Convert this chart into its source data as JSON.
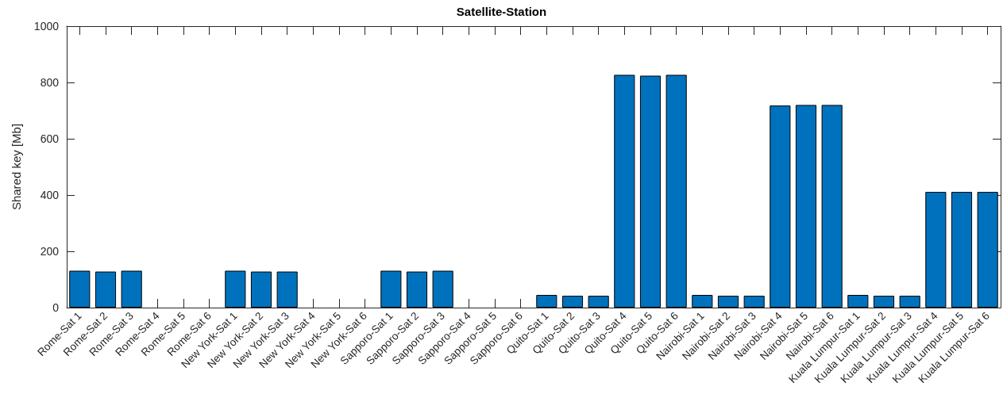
{
  "chart_data": {
    "type": "bar",
    "title": "Satellite-Station",
    "ylabel": "Shared key [Mb]",
    "categories": [
      "Rome-Sat 1",
      "Rome-Sat 2",
      "Rome-Sat 3",
      "Rome-Sat 4",
      "Rome-Sat 5",
      "Rome-Sat 6",
      "New York-Sat 1",
      "New York-Sat 2",
      "New York-Sat 3",
      "New York-Sat 4",
      "New York-Sat 5",
      "New York-Sat 6",
      "Sapporo-Sat 1",
      "Sapporo-Sat 2",
      "Sapporo-Sat 3",
      "Sapporo-Sat 4",
      "Sapporo-Sat 5",
      "Sapporo-Sat 6",
      "Quito-Sat 1",
      "Quito-Sat 2",
      "Quito-Sat 3",
      "Quito-Sat 4",
      "Quito-Sat 5",
      "Quito-Sat 6",
      "Nairobi-Sat 1",
      "Nairobi-Sat 2",
      "Nairobi-Sat 3",
      "Nairobi-Sat 4",
      "Nairobi-Sat 5",
      "Nairobi-Sat 6",
      "Kuala Lumpur-Sat 1",
      "Kuala Lumpur-Sat 2",
      "Kuala Lumpur-Sat 3",
      "Kuala Lumpur-Sat 4",
      "Kuala Lumpur-Sat 5",
      "Kuala Lumpur-Sat 6"
    ],
    "values": [
      131,
      128,
      131,
      0,
      0,
      0,
      131,
      128,
      128,
      0,
      0,
      0,
      131,
      128,
      131,
      0,
      0,
      0,
      45,
      42,
      42,
      827,
      824,
      827,
      45,
      42,
      42,
      718,
      720,
      720,
      45,
      42,
      42,
      411,
      411,
      411
    ],
    "color": "#0072bd",
    "ylim": [
      0,
      1000
    ],
    "yticks": [
      0,
      200,
      400,
      600,
      800,
      1000
    ]
  }
}
